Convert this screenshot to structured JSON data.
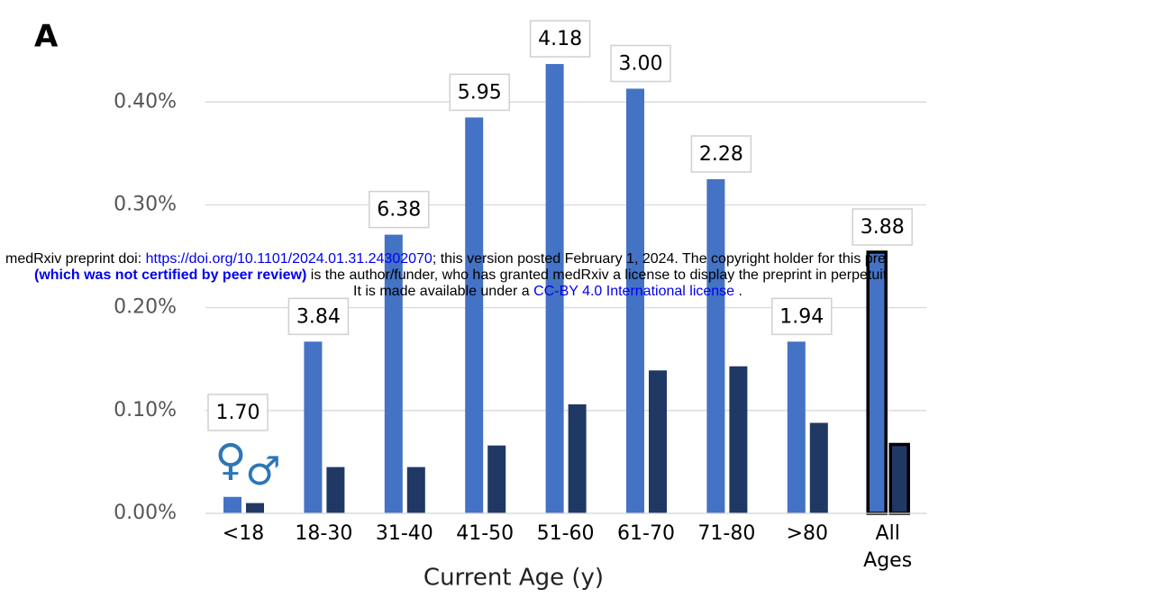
{
  "chart_data": {
    "type": "bar",
    "panel_label": "A",
    "x_label": "Current Age (y)",
    "categories": [
      "<18",
      "18-30",
      "31-40",
      "41-50",
      "51-60",
      "61-70",
      "71-80",
      ">80",
      "All Ages"
    ],
    "series": [
      {
        "name": "♀",
        "color": "#4472c4",
        "values": [
          0.016,
          0.167,
          0.271,
          0.385,
          0.437,
          0.413,
          0.325,
          0.167,
          0.254
        ]
      },
      {
        "name": "♂",
        "color": "#203864",
        "values": [
          0.01,
          0.045,
          0.045,
          0.066,
          0.106,
          0.139,
          0.143,
          0.088,
          0.067
        ]
      }
    ],
    "annotations": [
      "1.70",
      "3.84",
      "6.38",
      "5.95",
      "4.18",
      "3.00",
      "2.28",
      "1.94",
      "3.88"
    ],
    "outlined_index": 8,
    "ylim": [
      0,
      0.4975
    ],
    "yticks": [
      {
        "value": 0,
        "label": "0.00%"
      },
      {
        "value": 0.1,
        "label": "0.10%"
      },
      {
        "value": 0.2,
        "label": "0.20%"
      },
      {
        "value": 0.3,
        "label": "0.30%"
      },
      {
        "value": 0.4,
        "label": "0.40%"
      }
    ],
    "grid": true,
    "legend_color": "#2e75b6"
  },
  "watermark": {
    "line1": [
      "medRxiv preprint doi: ",
      "https://doi.org/10.1101/2024.01.31.24302070",
      "; this version posted February 1, 2024. The copyright holder for this pre"
    ],
    "line2": [
      "(which was not certified by peer review)",
      " is the author/funder, who has granted medRxiv a license to display the preprint in perpetuit"
    ],
    "line3": [
      "It is made available under a ",
      "CC-BY 4.0 International license",
      " ."
    ]
  }
}
